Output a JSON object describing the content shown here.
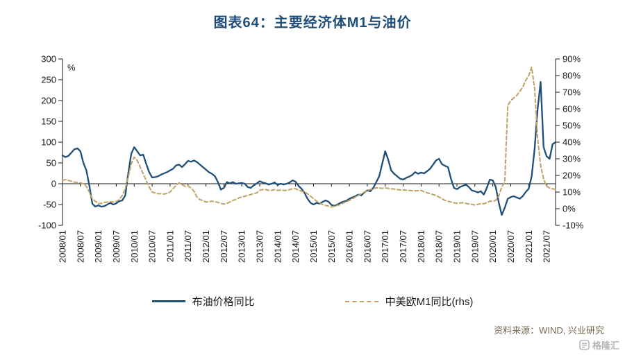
{
  "page": {
    "title": "图表64：主要经济体M1与油价",
    "source": "资料来源：WIND, 兴业研究",
    "watermark": "格隆汇"
  },
  "legend": [
    {
      "label": "布油价格同比",
      "color": "#1f4e79",
      "dashed": false
    },
    {
      "label": "中美欧M1同比(rhs)",
      "color": "#bfa264",
      "dashed": true
    }
  ],
  "chart_data": {
    "type": "line",
    "title": "图表64：主要经济体M1与油价",
    "x_start": "2008/01",
    "x_end": "2021/10",
    "frequency": "monthly",
    "grid": false,
    "legend_position": "bottom",
    "x_tick_labels": [
      "2008/01",
      "2008/07",
      "2009/01",
      "2009/07",
      "2010/01",
      "2010/07",
      "2011/01",
      "2011/07",
      "2012/01",
      "2012/07",
      "2013/01",
      "2013/07",
      "2014/01",
      "2014/07",
      "2015/01",
      "2015/07",
      "2016/01",
      "2016/07",
      "2017/01",
      "2017/07",
      "2018/01",
      "2018/07",
      "2019/01",
      "2019/07",
      "2020/01",
      "2020/07",
      "2021/01",
      "2021/07"
    ],
    "left_axis": {
      "unit_label": "%",
      "min": -100,
      "max": 300,
      "tick_values": [
        300,
        250,
        200,
        150,
        100,
        50,
        0,
        -50,
        -100
      ],
      "tick_labels": [
        "300",
        "250",
        "200",
        "150",
        "100",
        "50",
        "0",
        "-50",
        "-100"
      ]
    },
    "right_axis": {
      "min": -10,
      "max": 90,
      "tick_values": [
        90,
        80,
        70,
        60,
        50,
        40,
        30,
        20,
        10,
        0,
        -10
      ],
      "tick_labels": [
        "90%",
        "80%",
        "70%",
        "60%",
        "50%",
        "40%",
        "30%",
        "20%",
        "10%",
        "0%",
        "-10%"
      ]
    },
    "series": [
      {
        "name": "布油价格同比",
        "axis": "left",
        "style": "solid",
        "color": "#1f4e79",
        "values": [
          68,
          64,
          67,
          75,
          83,
          85,
          78,
          50,
          32,
          -5,
          -48,
          -55,
          -52,
          -55,
          -54,
          -50,
          -46,
          -50,
          -47,
          -42,
          -40,
          -28,
          25,
          72,
          88,
          78,
          68,
          70,
          48,
          28,
          15,
          16,
          18,
          22,
          25,
          28,
          32,
          36,
          44,
          46,
          40,
          47,
          55,
          53,
          56,
          52,
          46,
          40,
          34,
          28,
          24,
          18,
          4,
          -14,
          -10,
          4,
          1,
          4,
          0,
          1,
          2,
          0,
          -8,
          -10,
          -4,
          1,
          6,
          3,
          1,
          -2,
          0,
          3,
          -3,
          0,
          -2,
          0,
          3,
          8,
          5,
          -5,
          -12,
          -22,
          -36,
          -46,
          -50,
          -46,
          -48,
          -44,
          -40,
          -43,
          -51,
          -53,
          -50,
          -46,
          -43,
          -41,
          -36,
          -33,
          -30,
          -26,
          -28,
          -21,
          -16,
          -18,
          -10,
          4,
          18,
          48,
          78,
          58,
          32,
          24,
          18,
          12,
          10,
          14,
          17,
          21,
          28,
          24,
          27,
          25,
          30,
          36,
          46,
          56,
          60,
          47,
          43,
          40,
          12,
          -10,
          -13,
          -8,
          -5,
          -2,
          -8,
          -16,
          -18,
          -21,
          -18,
          -26,
          -10,
          10,
          8,
          -8,
          -45,
          -75,
          -58,
          -36,
          -32,
          -30,
          -33,
          -36,
          -30,
          -20,
          -12,
          18,
          85,
          180,
          245,
          88,
          66,
          60,
          95,
          100
        ]
      },
      {
        "name": "中美欧M1同比(rhs)",
        "axis": "right",
        "style": "dashed",
        "color": "#bfa264",
        "values": [
          17,
          17.5,
          17,
          16.5,
          16,
          15.8,
          15.5,
          15,
          13.5,
          10,
          6,
          4.5,
          3,
          3.2,
          3.8,
          4,
          4.2,
          4,
          4.3,
          5.5,
          8,
          12,
          19,
          27,
          31,
          29,
          25,
          21,
          17,
          13,
          10,
          9.5,
          9,
          9,
          8.8,
          9.2,
          10,
          12,
          14,
          15.5,
          14.5,
          13.5,
          13.8,
          12.5,
          10.5,
          7,
          5.5,
          4.8,
          4,
          4.2,
          4.5,
          4.2,
          3.8,
          3.2,
          2.8,
          3.2,
          4,
          5,
          5.5,
          6.5,
          7,
          7.5,
          8,
          8.5,
          9,
          9.5,
          11,
          11.5,
          11.5,
          11,
          11,
          11.5,
          11,
          11.2,
          11,
          11,
          11.5,
          12,
          12,
          11.2,
          10.5,
          10,
          9,
          7.5,
          6,
          4.5,
          3.5,
          2.5,
          2,
          1.5,
          1,
          1.5,
          2,
          2.5,
          3.5,
          4.2,
          5,
          6,
          7,
          8,
          9,
          10,
          11,
          11.5,
          12,
          12.5,
          12.5,
          12.2,
          12.5,
          12.2,
          12,
          11.8,
          11.5,
          11.3,
          11.2,
          11.2,
          11,
          10.8,
          10.8,
          10.8,
          11,
          10.2,
          9.6,
          9,
          8.5,
          8,
          7,
          6,
          5,
          4.5,
          4,
          3.6,
          3.2,
          3.5,
          3.6,
          3.2,
          2.8,
          2.6,
          2.2,
          2.6,
          3,
          3,
          3.6,
          4.5,
          4.5,
          5,
          7.5,
          13,
          16,
          62,
          65,
          66.5,
          68,
          70.5,
          73,
          77,
          80,
          85,
          72,
          42,
          26,
          18,
          13.5,
          12.5,
          12,
          11.5
        ]
      }
    ]
  }
}
